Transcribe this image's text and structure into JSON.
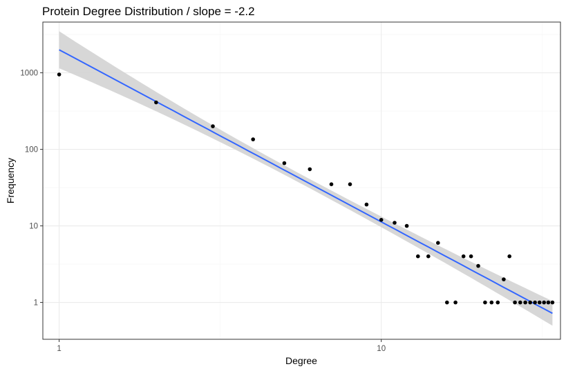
{
  "chart_data": {
    "type": "scatter",
    "title": "Protein Degree Distribution / slope = -2.2",
    "xlabel": "Degree",
    "ylabel": "Frequency",
    "x_scale": "log10",
    "y_scale": "log10",
    "xlim": [
      0.89,
      36.0
    ],
    "ylim": [
      0.33,
      4600
    ],
    "x_ticks": [
      1,
      10
    ],
    "x_tick_labels": [
      "1",
      "10"
    ],
    "y_ticks": [
      1,
      10,
      100,
      1000
    ],
    "y_tick_labels": [
      "1",
      "10",
      "100",
      "1000"
    ],
    "grid": true,
    "legend": "none",
    "colors": {
      "points": "#000000",
      "fit_line": "#3366ff",
      "confidence_band": "#d3d3d3",
      "grid_major": "#ebebeb",
      "grid_minor": "#f5f5f5",
      "panel_border": "#333333",
      "tick_label": "#4d4d4d"
    },
    "points": [
      {
        "x": 1,
        "y": 950
      },
      {
        "x": 2,
        "y": 410
      },
      {
        "x": 3,
        "y": 200
      },
      {
        "x": 4,
        "y": 135
      },
      {
        "x": 5,
        "y": 66
      },
      {
        "x": 6,
        "y": 55
      },
      {
        "x": 7,
        "y": 35
      },
      {
        "x": 8,
        "y": 35
      },
      {
        "x": 9,
        "y": 19
      },
      {
        "x": 10,
        "y": 12
      },
      {
        "x": 11,
        "y": 11
      },
      {
        "x": 12,
        "y": 10
      },
      {
        "x": 13,
        "y": 4
      },
      {
        "x": 14,
        "y": 4
      },
      {
        "x": 15,
        "y": 6
      },
      {
        "x": 16,
        "y": 1
      },
      {
        "x": 17,
        "y": 1
      },
      {
        "x": 18,
        "y": 4
      },
      {
        "x": 19,
        "y": 4
      },
      {
        "x": 20,
        "y": 3
      },
      {
        "x": 21,
        "y": 1
      },
      {
        "x": 22,
        "y": 1
      },
      {
        "x": 23,
        "y": 1
      },
      {
        "x": 24,
        "y": 2
      },
      {
        "x": 25,
        "y": 4
      },
      {
        "x": 26,
        "y": 1
      },
      {
        "x": 27,
        "y": 1
      },
      {
        "x": 28,
        "y": 1
      },
      {
        "x": 29,
        "y": 1
      },
      {
        "x": 30,
        "y": 1
      },
      {
        "x": 31,
        "y": 1
      },
      {
        "x": 32,
        "y": 1
      },
      {
        "x": 33,
        "y": 1
      },
      {
        "x": 34,
        "y": 1
      }
    ],
    "fit": {
      "method": "linear regression on log-log scale",
      "slope": -2.2,
      "x_range": [
        1,
        34
      ],
      "y_at_x_min": 2000,
      "y_at_x_max": 0.72,
      "ci_at_x_min": [
        1150,
        3500
      ],
      "ci_at_x_max": [
        0.5,
        1.05
      ]
    }
  }
}
